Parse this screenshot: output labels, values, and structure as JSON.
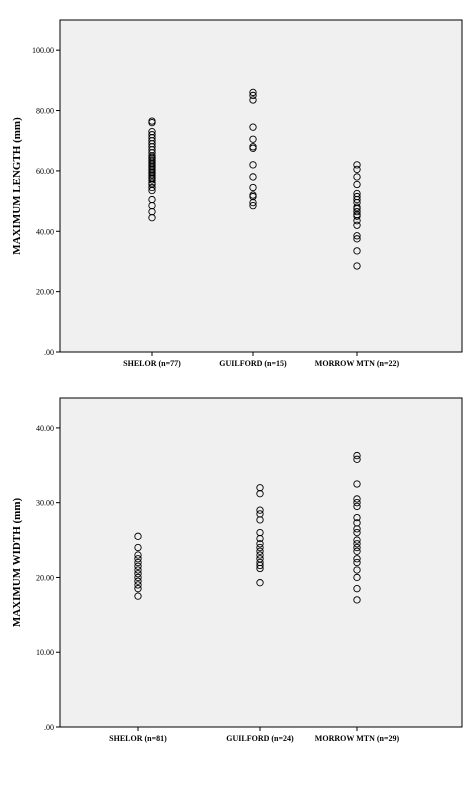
{
  "chart_data": [
    {
      "type": "scatter",
      "ylabel": "MAXIMUM LENGTH (mm)",
      "ylim": [
        0,
        110
      ],
      "yticks": [
        ".00",
        "20.00",
        "40.00",
        "60.00",
        "80.00",
        "100.00"
      ],
      "categories": [
        "SHELOR (n=77)",
        "GUILFORD (n=15)",
        "MORROW MTN (n=22)"
      ],
      "grid": false,
      "background": "#f0f0f0",
      "series": [
        {
          "category": "SHELOR (n=77)",
          "values": [
            44.5,
            46.5,
            48.5,
            50.5,
            53.5,
            54.5,
            55.5,
            56,
            57,
            57.5,
            58,
            58.5,
            59,
            59.5,
            60,
            60.5,
            61,
            61.5,
            62,
            62.5,
            63,
            63.5,
            64,
            64.5,
            65,
            66,
            67,
            68,
            69,
            70,
            71,
            72,
            73,
            76,
            76.5
          ]
        },
        {
          "category": "GUILFORD (n=15)",
          "values": [
            48.5,
            49.5,
            51.5,
            52,
            54.5,
            58,
            62,
            67.5,
            68,
            70.5,
            74.5,
            83.5,
            85,
            86
          ]
        },
        {
          "category": "MORROW MTN (n=22)",
          "values": [
            28.5,
            33.5,
            37.5,
            38.5,
            42,
            43.5,
            45,
            45.5,
            46.5,
            47.5,
            48,
            49.5,
            50.5,
            51.5,
            52.5,
            55.5,
            58,
            60.5,
            62
          ]
        }
      ]
    },
    {
      "type": "scatter",
      "ylabel": "MAXIMUM WIDTH (mm)",
      "ylim": [
        0,
        44
      ],
      "yticks": [
        ".00",
        "10.00",
        "20.00",
        "30.00",
        "40.00"
      ],
      "categories": [
        "SHELOR (n=81)",
        "GUILFORD (n=24)",
        "MORROW MTN (n=29)"
      ],
      "grid": false,
      "background": "#f0f0f0",
      "series": [
        {
          "category": "SHELOR (n=81)",
          "values": [
            17.5,
            18.5,
            19,
            19.5,
            20,
            20.5,
            21,
            21.5,
            22,
            22.5,
            23,
            24,
            25.5
          ]
        },
        {
          "category": "GUILFORD (n=24)",
          "values": [
            19.3,
            21.2,
            21.6,
            22,
            22.5,
            23,
            23.5,
            24,
            24.5,
            25.2,
            26,
            27.7,
            28.5,
            29,
            31.2,
            32
          ]
        },
        {
          "category": "MORROW MTN (n=29)",
          "values": [
            17,
            18.5,
            20,
            21,
            22,
            22.5,
            23.5,
            24,
            24.5,
            25,
            26,
            26.5,
            27.3,
            28,
            29.5,
            30,
            30.5,
            32.5,
            35.8,
            36.3
          ]
        }
      ]
    }
  ]
}
